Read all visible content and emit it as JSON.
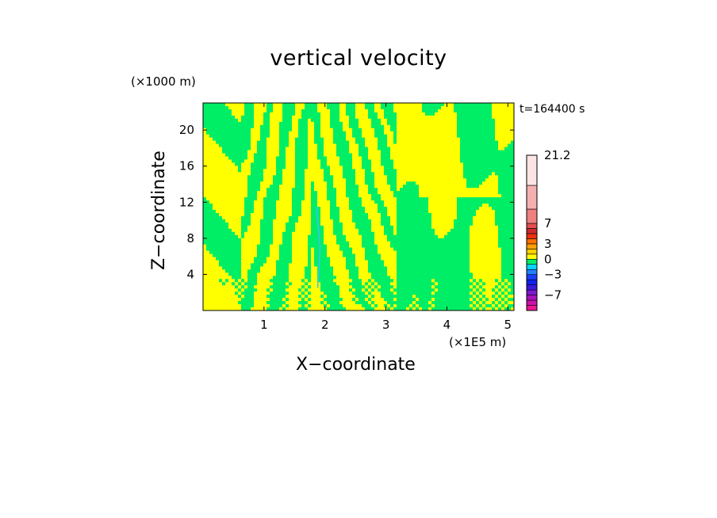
{
  "chart_data": {
    "type": "heatmap",
    "title": "vertical velocity",
    "xlabel": "X−coordinate",
    "ylabel": "Z−coordinate",
    "x_unit": "(×1E5 m)",
    "y_unit": "(×1000 m)",
    "time_label": "t=164400 s",
    "xlim": [
      0,
      5.1
    ],
    "ylim": [
      0,
      23
    ],
    "x_ticks": [
      1,
      2,
      3,
      4,
      5
    ],
    "y_ticks": [
      4,
      8,
      12,
      16,
      20
    ],
    "colorbar": {
      "tick_labels": [
        "21.2",
        "7",
        "3",
        "0",
        "−3",
        "−7"
      ],
      "levels": [
        -10,
        -9,
        -8,
        -7,
        -6,
        -5,
        -4,
        -3,
        -2,
        -1,
        0,
        1,
        2,
        3,
        4,
        5,
        6,
        7,
        10,
        14.2,
        21.2
      ],
      "colors": [
        "#ee1493",
        "#cc11aa",
        "#a811bb",
        "#7a1acc",
        "#3a16dd",
        "#1020ee",
        "#1a3cff",
        "#2080ff",
        "#00d8ff",
        "#00ee66",
        "#ffff00",
        "#ffd000",
        "#ffa000",
        "#ff7000",
        "#ee3010",
        "#cc2a30",
        "#e05050",
        "#ee8080",
        "#f4b0b0",
        "#fce4e4"
      ]
    },
    "dominant_fields": {
      "positive": "#ffff00",
      "negative": "#00ee66"
    }
  }
}
